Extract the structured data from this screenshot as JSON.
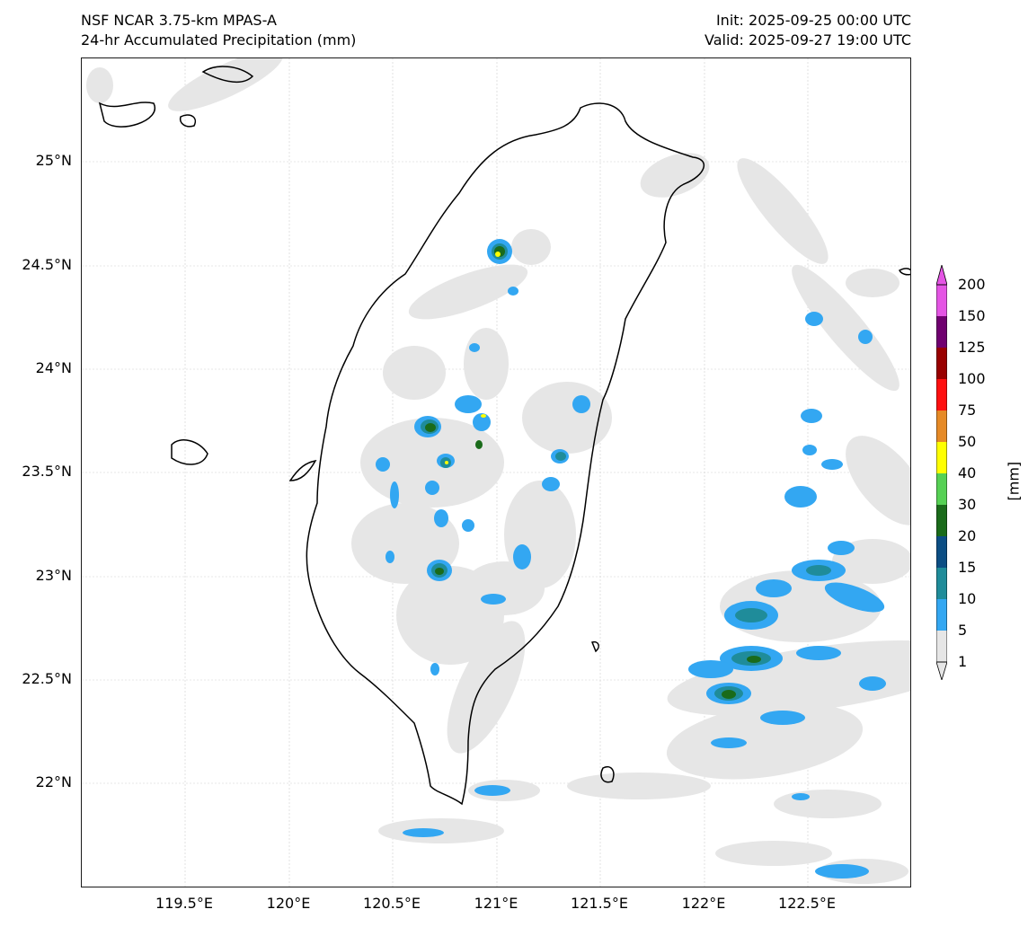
{
  "header": {
    "model": "NSF NCAR 3.75-km MPAS-A",
    "field": "24-hr Accumulated Precipitation (mm)",
    "init": "Init: 2025-09-25 00:00 UTC",
    "valid": "Valid: 2025-09-27 19:00 UTC"
  },
  "axes": {
    "lat_ticks": [
      "25°N",
      "24.5°N",
      "24°N",
      "23.5°N",
      "23°N",
      "22.5°N",
      "22°N"
    ],
    "lon_ticks": [
      "119.5°E",
      "120°E",
      "120.5°E",
      "121°E",
      "121.5°E",
      "122°E",
      "122.5°E"
    ]
  },
  "colorbar": {
    "title": "[mm]",
    "levels": [
      "1",
      "5",
      "10",
      "15",
      "20",
      "30",
      "40",
      "50",
      "75",
      "100",
      "125",
      "150",
      "200"
    ],
    "colors": [
      "#e6e6e6",
      "#33a7f2",
      "#1f8c9a",
      "#0c4e84",
      "#1a6b1a",
      "#56d154",
      "#ffff00",
      "#e68a26",
      "#ff1010",
      "#990000",
      "#700070",
      "#e455e4"
    ]
  },
  "map": {
    "region": "Taiwan",
    "lat_range": [
      21.5,
      25.5
    ],
    "lon_range": [
      119.0,
      123.0
    ]
  }
}
